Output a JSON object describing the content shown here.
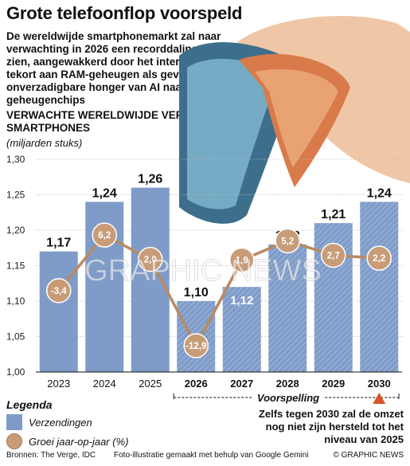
{
  "header": {
    "title": "Grote telefoonflop voorspeld",
    "subtitle": "De wereldwijde smartphonemarkt zal naar verwachting in 2026 een recorddaling laten zien, aangewakkerd door het internationale tekort aan RAM-geheugen als gevolg van de onverzadigbare honger van AI naar geheugenchips"
  },
  "chart_heading": "VERWACHTE WERELDWIJDE VERZENDING SMARTPHONES",
  "chart_units": "(miljarden stuks)",
  "watermark": "GRAPHIC NEWS",
  "chart_data": {
    "type": "bar",
    "categories": [
      "2023",
      "2024",
      "2025",
      "2026",
      "2027",
      "2028",
      "2029",
      "2030"
    ],
    "series": [
      {
        "name": "Verzendingen",
        "values": [
          1.17,
          1.24,
          1.26,
          1.1,
          1.12,
          1.18,
          1.21,
          1.24
        ],
        "labels": [
          "1,17",
          "1,24",
          "1,26",
          "1,10",
          "1,12",
          "1,18",
          "1,21",
          "1,24"
        ],
        "color": "#7f9cc9"
      },
      {
        "name": "Groei jaar-op-jaar (%)",
        "type": "line",
        "values": [
          -3.4,
          6.2,
          2.0,
          -12.9,
          1.9,
          5.2,
          2.7,
          2.2
        ],
        "labels": [
          "-3,4",
          "6,2",
          "2,0",
          "-12,9",
          "1,9",
          "5,2",
          "2,7",
          "2,2"
        ],
        "color": "#b98a63"
      }
    ],
    "y_ticks": [
      "1,00",
      "1,05",
      "1,10",
      "1,15",
      "1,20",
      "1,25",
      "1,30"
    ],
    "ylim": [
      1.0,
      1.3
    ],
    "forecast_from": "2026",
    "forecast_label": "Voorspelling",
    "grid": true
  },
  "legend": {
    "title": "Legenda",
    "bars_label": "Verzendingen",
    "line_label": "Groei jaar-op-jaar (%)"
  },
  "note": "Zelfs tegen 2030 zal de omzet nog niet zijn hersteld tot het niveau van 2025",
  "footer": {
    "sources": "Bronnen: The Verge, IDC",
    "photo_credit": "Foto-illustratie gemaakt met behulp van Google Gemini",
    "copyright": "© GRAPHIC NEWS"
  },
  "colors": {
    "bar": "#7f9cc9",
    "line": "#b98a63",
    "forecast_marker": "#d9532b"
  }
}
